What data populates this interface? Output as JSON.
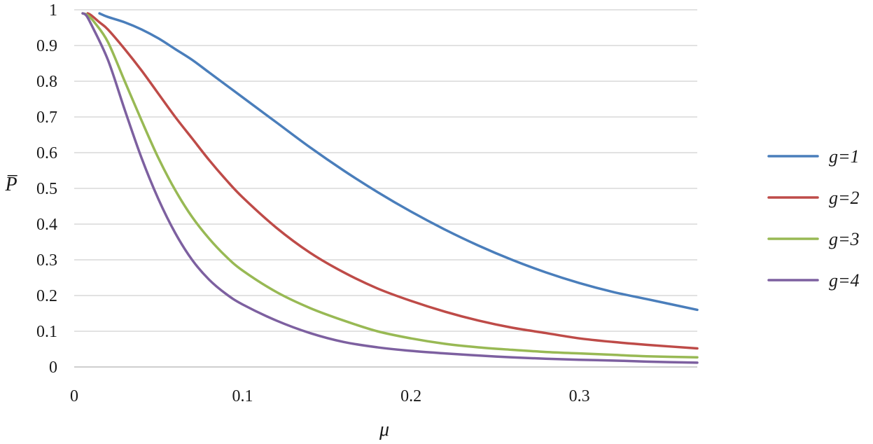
{
  "chart_data": {
    "type": "line",
    "title": "",
    "xlabel": "μ",
    "ylabel": "P̅",
    "xlim": [
      0,
      0.37
    ],
    "ylim": [
      0,
      1
    ],
    "x_ticks": [
      0,
      0.1,
      0.2,
      0.3
    ],
    "x_tick_labels": [
      "0",
      "0.1",
      "0.2",
      "0.3"
    ],
    "y_ticks": [
      0,
      0.1,
      0.2,
      0.3,
      0.4,
      0.5,
      0.6,
      0.7,
      0.8,
      0.9,
      1
    ],
    "y_tick_labels": [
      "0",
      "0.1",
      "0.2",
      "0.3",
      "0.4",
      "0.5",
      "0.6",
      "0.7",
      "0.8",
      "0.9",
      "1"
    ],
    "grid": true,
    "legend_position": "right",
    "series": [
      {
        "name": "g=1",
        "color": "#4a7ebb",
        "x": [
          0.015,
          0.02,
          0.03,
          0.04,
          0.05,
          0.06,
          0.07,
          0.08,
          0.09,
          0.1,
          0.12,
          0.14,
          0.16,
          0.18,
          0.2,
          0.22,
          0.24,
          0.26,
          0.28,
          0.3,
          0.32,
          0.34,
          0.37
        ],
        "y": [
          0.99,
          0.98,
          0.965,
          0.945,
          0.92,
          0.89,
          0.86,
          0.825,
          0.79,
          0.755,
          0.685,
          0.615,
          0.55,
          0.49,
          0.435,
          0.385,
          0.34,
          0.3,
          0.265,
          0.235,
          0.21,
          0.19,
          0.16
        ]
      },
      {
        "name": "g=2",
        "color": "#be4b48",
        "x": [
          0.008,
          0.01,
          0.015,
          0.02,
          0.03,
          0.04,
          0.05,
          0.06,
          0.07,
          0.08,
          0.09,
          0.1,
          0.12,
          0.14,
          0.16,
          0.18,
          0.2,
          0.22,
          0.24,
          0.26,
          0.28,
          0.3,
          0.32,
          0.34,
          0.37
        ],
        "y": [
          0.99,
          0.985,
          0.965,
          0.945,
          0.89,
          0.83,
          0.765,
          0.7,
          0.64,
          0.58,
          0.525,
          0.475,
          0.39,
          0.32,
          0.265,
          0.22,
          0.185,
          0.155,
          0.13,
          0.11,
          0.095,
          0.08,
          0.07,
          0.062,
          0.052
        ]
      },
      {
        "name": "g=3",
        "color": "#98b954",
        "x": [
          0.005,
          0.008,
          0.012,
          0.02,
          0.03,
          0.04,
          0.05,
          0.06,
          0.07,
          0.08,
          0.09,
          0.1,
          0.12,
          0.14,
          0.16,
          0.18,
          0.2,
          0.22,
          0.24,
          0.26,
          0.28,
          0.3,
          0.32,
          0.34,
          0.37
        ],
        "y": [
          0.99,
          0.985,
          0.965,
          0.91,
          0.8,
          0.69,
          0.585,
          0.495,
          0.42,
          0.36,
          0.31,
          0.27,
          0.21,
          0.165,
          0.13,
          0.1,
          0.08,
          0.065,
          0.055,
          0.048,
          0.042,
          0.038,
          0.034,
          0.03,
          0.027
        ]
      },
      {
        "name": "g=4",
        "color": "#7d60a0",
        "x": [
          0.005,
          0.007,
          0.01,
          0.02,
          0.03,
          0.04,
          0.05,
          0.06,
          0.07,
          0.08,
          0.09,
          0.1,
          0.12,
          0.14,
          0.16,
          0.18,
          0.2,
          0.22,
          0.24,
          0.26,
          0.28,
          0.3,
          0.32,
          0.34,
          0.37
        ],
        "y": [
          0.99,
          0.985,
          0.96,
          0.86,
          0.72,
          0.585,
          0.47,
          0.375,
          0.3,
          0.245,
          0.205,
          0.175,
          0.13,
          0.095,
          0.07,
          0.055,
          0.045,
          0.038,
          0.032,
          0.027,
          0.023,
          0.02,
          0.018,
          0.015,
          0.012
        ]
      }
    ]
  }
}
